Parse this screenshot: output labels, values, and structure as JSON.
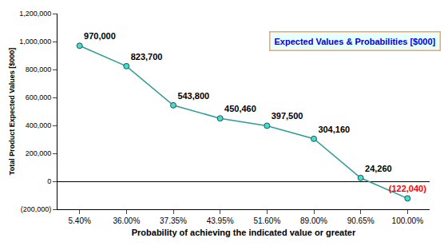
{
  "chart_data": {
    "type": "line",
    "annotations": [
      "Expected Values & Probabilities [$000]"
    ],
    "x_label": "Probability of achieving the indicated value or greater",
    "y_label": "Total Product Expected Values [$000]",
    "categories": [
      "5.40%",
      "36.00%",
      "37.35%",
      "43.95%",
      "51.60%",
      "89.00%",
      "90.65%",
      "100.00%"
    ],
    "values": [
      970000,
      823700,
      543800,
      450460,
      397500,
      304160,
      24260,
      -122040
    ],
    "value_labels": [
      "970,000",
      "823,700",
      "543,800",
      "450,460",
      "397,500",
      "304,160",
      "24,260",
      "(122,040)"
    ],
    "data_labels": true,
    "color": "#2e9c94",
    "marker": "circle",
    "ylim": [
      -200000,
      1200000
    ],
    "yticks": [
      {
        "value": -200000,
        "label": "(200,000)"
      },
      0,
      {
        "value": 200000,
        "label": "200,000"
      },
      {
        "value": 400000,
        "label": "400,000"
      },
      {
        "value": 600000,
        "label": "600,000"
      },
      {
        "value": 800000,
        "label": "800,000"
      },
      {
        "value": 1000000,
        "label": "1,000,000"
      },
      {
        "value": 1200000,
        "label": "1,200,000"
      }
    ],
    "grid": false
  }
}
